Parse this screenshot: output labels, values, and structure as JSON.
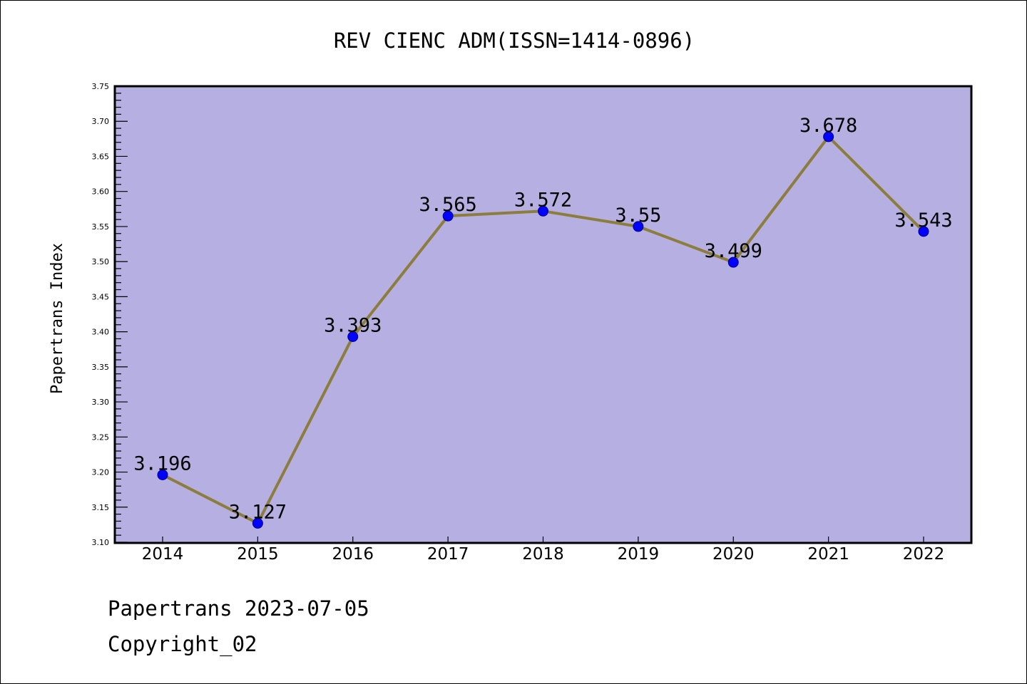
{
  "chart_data": {
    "type": "line",
    "title": "REV CIENC ADM(ISSN=1414-0896)",
    "xlabel": "",
    "ylabel": "Papertrans Index",
    "categories": [
      "2014",
      "2015",
      "2016",
      "2017",
      "2018",
      "2019",
      "2020",
      "2021",
      "2022"
    ],
    "values": [
      3.196,
      3.127,
      3.393,
      3.565,
      3.572,
      3.55,
      3.499,
      3.678,
      3.543
    ],
    "data_labels": [
      "3.196",
      "3.127",
      "3.393",
      "3.565",
      "3.572",
      "3.55",
      "3.499",
      "3.678",
      "3.543"
    ],
    "ylim": [
      3.1,
      3.75
    ],
    "yticks": [
      "3.10",
      "3.15",
      "3.20",
      "3.25",
      "3.30",
      "3.35",
      "3.40",
      "3.45",
      "3.50",
      "3.55",
      "3.60",
      "3.65",
      "3.70",
      "3.75"
    ],
    "grid": false,
    "colors": {
      "background": "#b5afe2",
      "line": "#8c7d3c",
      "marker": "#0000ff"
    }
  },
  "footer": {
    "line1": "Papertrans 2023-07-05",
    "line2": "Copyright_02"
  }
}
